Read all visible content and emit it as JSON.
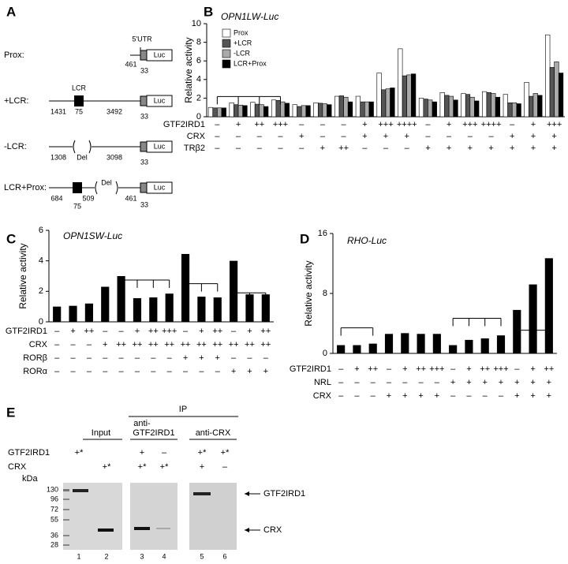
{
  "panel_a": {
    "label": "A",
    "rows": [
      {
        "name": "Prox:",
        "texts": [
          "5'UTR",
          "461",
          "33",
          "Luc"
        ]
      },
      {
        "name": "+LCR:",
        "texts": [
          "LCR",
          "1431",
          "75",
          "3492",
          "33",
          "Luc"
        ]
      },
      {
        "name": "-LCR:",
        "texts": [
          "1308",
          "Del",
          "3098",
          "33",
          "Luc"
        ]
      },
      {
        "name": "LCR+Prox:",
        "texts": [
          "684",
          "509",
          "75",
          "Del",
          "461",
          "33",
          "Luc"
        ]
      }
    ]
  },
  "chart_data": [
    {
      "type": "bar",
      "label": "B",
      "title": "OPN1LW-Luc",
      "y_label": "Relative activity",
      "ylim": [
        0,
        10
      ],
      "yticks": [
        0,
        2,
        4,
        6,
        8,
        10
      ],
      "legend": "upper left",
      "series": [
        {
          "name": "Prox",
          "color": "#ffffff",
          "values": [
            1.0,
            1.5,
            1.55,
            1.8,
            1.3,
            1.5,
            2.2,
            2.2,
            4.7,
            7.3,
            2.0,
            2.6,
            2.5,
            2.7,
            2.4,
            3.7,
            8.8
          ]
        },
        {
          "name": "+LCR",
          "color": "#555555",
          "values": [
            0.95,
            1.3,
            1.35,
            1.75,
            1.1,
            1.45,
            2.25,
            1.6,
            2.9,
            4.4,
            1.9,
            2.3,
            2.4,
            2.6,
            1.5,
            2.2,
            5.3
          ]
        },
        {
          "name": "-LCR",
          "color": "#aaaaaa",
          "values": [
            0.95,
            1.25,
            1.3,
            1.6,
            1.2,
            1.4,
            2.1,
            1.6,
            3.0,
            4.5,
            1.8,
            2.2,
            2.1,
            2.5,
            1.5,
            2.5,
            5.9
          ]
        },
        {
          "name": "LCR+Prox",
          "color": "#000000",
          "values": [
            0.95,
            1.2,
            1.1,
            1.45,
            1.2,
            1.3,
            1.6,
            1.6,
            3.1,
            4.6,
            1.6,
            1.8,
            1.7,
            2.1,
            1.4,
            2.3,
            4.7
          ]
        }
      ],
      "conditions": [
        {
          "name": "GTF2IRD1",
          "values": [
            "–",
            "+",
            "++",
            "+++",
            "–",
            "–",
            "–",
            "+",
            "+++",
            "++++",
            "–",
            "+",
            "+++",
            "++++",
            "–",
            "+",
            "+++"
          ]
        },
        {
          "name": "CRX",
          "values": [
            "–",
            "–",
            "–",
            "–",
            "+",
            "–",
            "–",
            "+",
            "+",
            "+",
            "–",
            "–",
            "–",
            "–",
            "+",
            "+",
            "+"
          ]
        },
        {
          "name": "TRβ2",
          "values": [
            "–",
            "–",
            "–",
            "–",
            "–",
            "+",
            "++",
            "–",
            "–",
            "–",
            "+",
            "+",
            "+",
            "+",
            "+",
            "+",
            "+"
          ]
        }
      ]
    },
    {
      "type": "bar",
      "label": "C",
      "title": "OPN1SW-Luc",
      "y_label": "Relative activity",
      "ylim": [
        0,
        6
      ],
      "yticks": [
        0,
        2,
        4,
        6
      ],
      "color": "#000000",
      "values": [
        1.0,
        1.05,
        1.2,
        2.3,
        3.0,
        1.55,
        1.6,
        1.85,
        4.45,
        1.65,
        1.6,
        4.0,
        1.8,
        1.8
      ],
      "conditions": [
        {
          "name": "GTF2IRD1",
          "values": [
            "–",
            "+",
            "++",
            "–",
            "–",
            "+",
            "++",
            "+++",
            "–",
            "+",
            "++",
            "–",
            "+",
            "++"
          ]
        },
        {
          "name": "CRX",
          "values": [
            "–",
            "–",
            "–",
            "+",
            "++",
            "++",
            "++",
            "++",
            "++",
            "++",
            "++",
            "++",
            "++",
            "++"
          ]
        },
        {
          "name": "RORβ",
          "values": [
            "–",
            "–",
            "–",
            "–",
            "–",
            "–",
            "–",
            "–",
            "+",
            "+",
            "+",
            "–",
            "–",
            "–"
          ]
        },
        {
          "name": "RORα",
          "values": [
            "–",
            "–",
            "–",
            "–",
            "–",
            "–",
            "–",
            "–",
            "–",
            "–",
            "–",
            "+",
            "+",
            "+"
          ]
        }
      ]
    },
    {
      "type": "bar",
      "label": "D",
      "title": "RHO-Luc",
      "y_label": "Relative activity",
      "ylim": [
        0,
        16
      ],
      "yticks": [
        0,
        8,
        16
      ],
      "color": "#000000",
      "values": [
        1.1,
        1.1,
        1.3,
        2.6,
        2.7,
        2.6,
        2.6,
        1.1,
        1.8,
        2.0,
        2.4,
        5.8,
        9.2,
        12.7
      ],
      "conditions": [
        {
          "name": "GTF2IRD1",
          "values": [
            "–",
            "+",
            "++",
            "–",
            "+",
            "++",
            "+++",
            "–",
            "+",
            "++",
            "+++",
            "–",
            "+",
            "++"
          ]
        },
        {
          "name": "NRL",
          "values": [
            "–",
            "–",
            "–",
            "–",
            "–",
            "–",
            "–",
            "+",
            "+",
            "+",
            "+",
            "+",
            "+",
            "+"
          ]
        },
        {
          "name": "CRX",
          "values": [
            "–",
            "–",
            "–",
            "+",
            "+",
            "+",
            "+",
            "–",
            "–",
            "–",
            "–",
            "+",
            "+",
            "+"
          ]
        }
      ]
    }
  ],
  "panel_e": {
    "label": "E",
    "ip": "IP",
    "groups": [
      [
        "Input"
      ],
      [
        "anti-",
        "GTF2IRD1"
      ],
      [
        "anti-CRX"
      ]
    ],
    "rows": [
      {
        "name": "GTF2IRD1",
        "lanes": [
          "+*",
          null,
          "+",
          "–",
          "+*",
          "+*"
        ]
      },
      {
        "name": "CRX",
        "lanes": [
          null,
          "+*",
          "+*",
          "+*",
          "+",
          "–"
        ]
      }
    ],
    "unit": "kDa",
    "markers": [
      "130",
      "96",
      "72",
      "55",
      "36",
      "28"
    ],
    "lanes": [
      "1",
      "2",
      "3",
      "4",
      "5",
      "6"
    ],
    "arrows": [
      "GTF2IRD1",
      "CRX"
    ]
  }
}
